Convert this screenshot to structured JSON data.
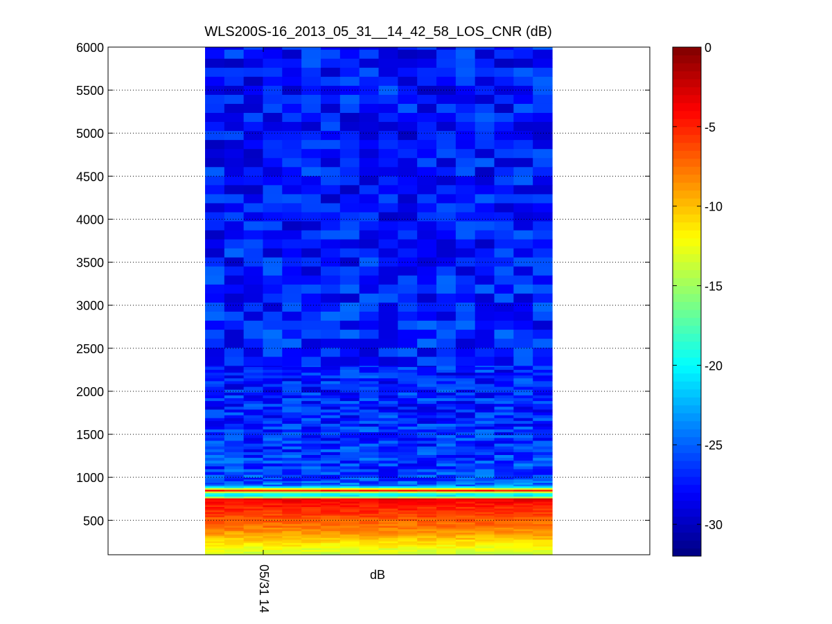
{
  "chart_data": {
    "type": "heatmap",
    "title": "WLS200S-16_2013_05_31__14_42_58_LOS_CNR (dB)",
    "xlabel": "dB",
    "ylabel": "",
    "x_tick_labels": [
      "05/31 14"
    ],
    "y_ticks": [
      500,
      1000,
      1500,
      2000,
      2500,
      3000,
      3500,
      4000,
      4500,
      5000,
      5500,
      6000
    ],
    "ylim": [
      100,
      6000
    ],
    "grid": "y dotted",
    "colorbar": {
      "colormap": "jet",
      "clim": [
        -32,
        0
      ],
      "ticks": [
        0,
        -5,
        -10,
        -15,
        -20,
        -25,
        -30
      ]
    },
    "n_columns": 18,
    "profile": {
      "range_m": [
        100,
        200,
        300,
        400,
        500,
        600,
        700,
        750,
        780,
        820,
        850,
        900,
        1000,
        1500,
        2000,
        3000,
        4000,
        5000,
        6000
      ],
      "cnr_db": [
        -14,
        -12,
        -10,
        -8,
        -7,
        -5.5,
        -4.5,
        -3.5,
        -21,
        -19,
        -5,
        -24,
        -26,
        -26.5,
        -27,
        -27,
        -27.5,
        -27.5,
        -27.5
      ]
    }
  }
}
